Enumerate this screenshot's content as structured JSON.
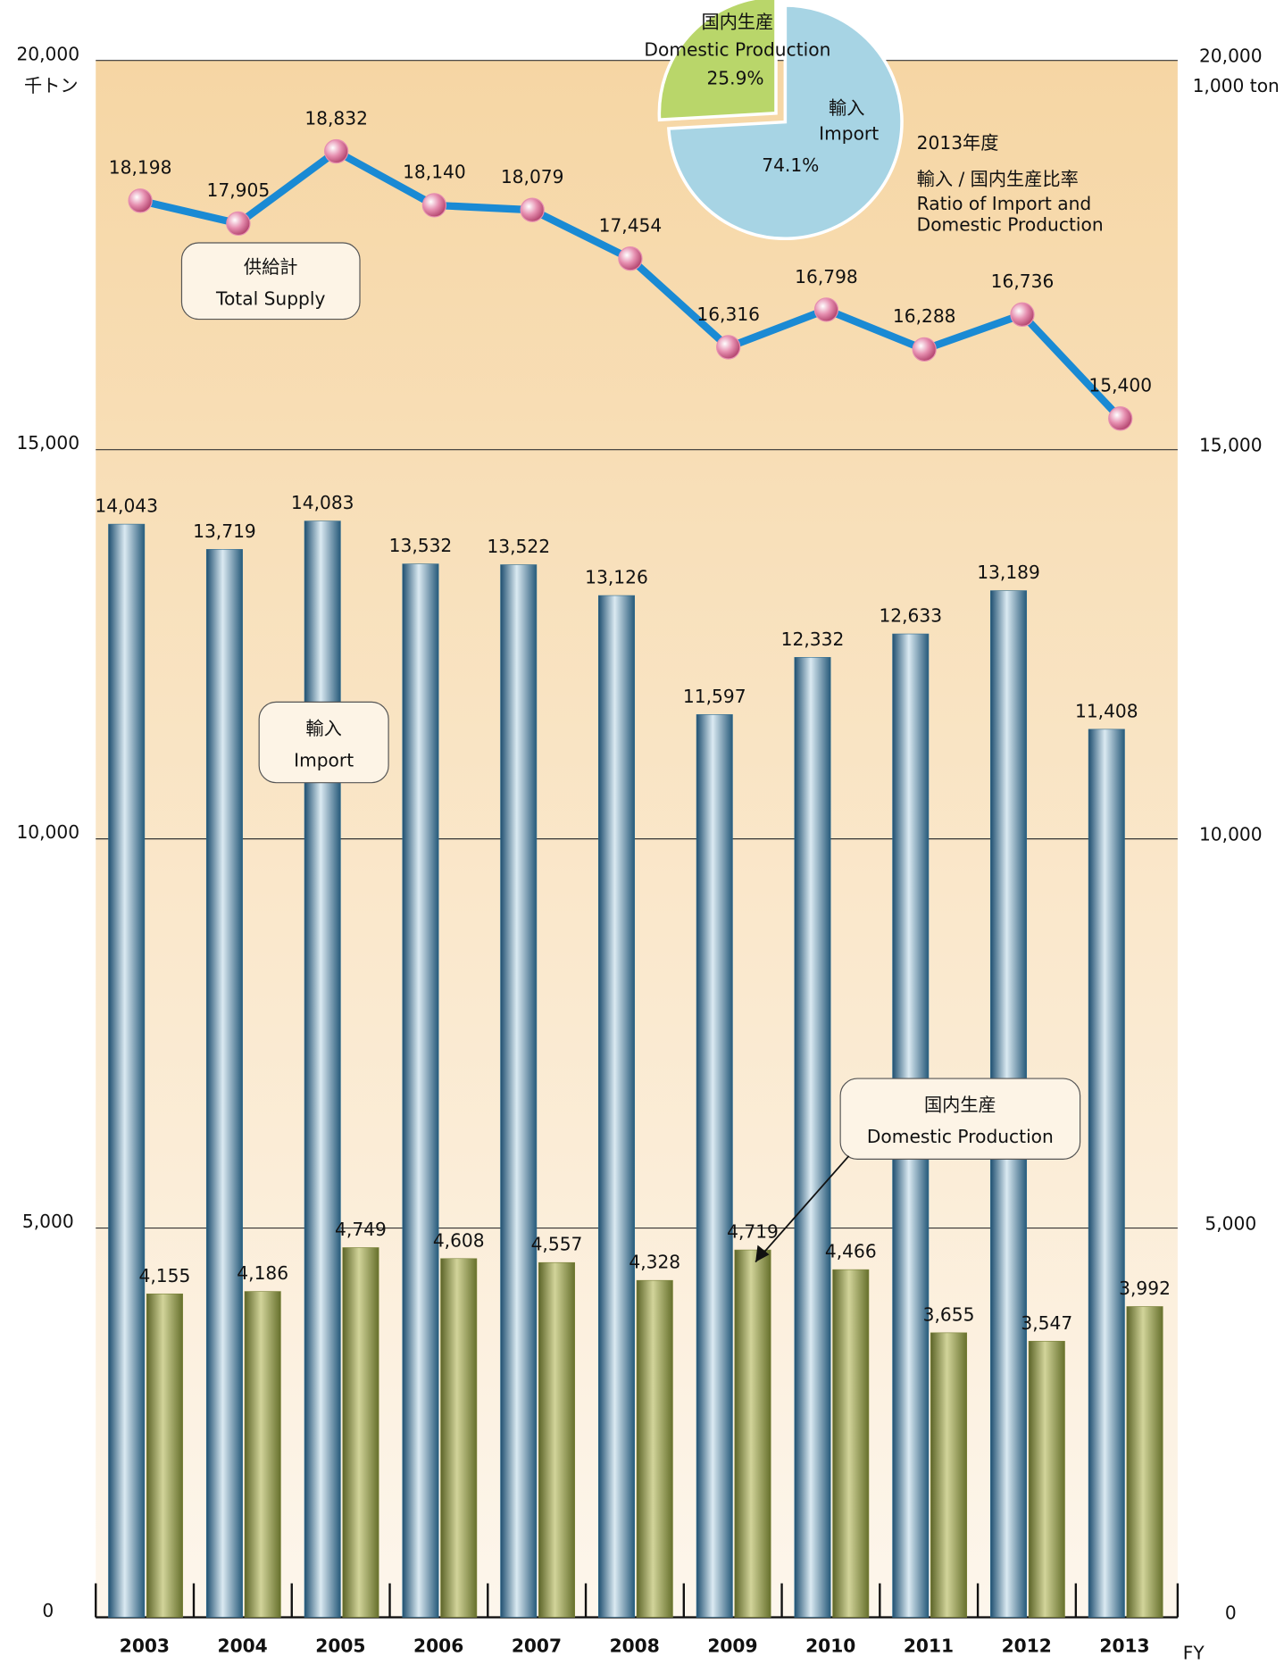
{
  "chart_data": [
    {
      "type": "bar",
      "categories": [
        "2003",
        "2004",
        "2005",
        "2006",
        "2007",
        "2008",
        "2009",
        "2010",
        "2011",
        "2012",
        "2013"
      ],
      "x_label": "FY",
      "y_label": "千トン",
      "y2_label": "1,000 ton",
      "series": [
        {
          "name": "輸入",
          "name_en": "Import",
          "color": "#2f6c90",
          "values": [
            14043,
            13719,
            14083,
            13532,
            13522,
            13126,
            11597,
            12332,
            12633,
            13189,
            11408
          ],
          "value_labels": [
            "14,043",
            "13,719",
            "14,083",
            "13,532",
            "13,522",
            "13,126",
            "11,597",
            "12,332",
            "12,633",
            "13,189",
            "11,408"
          ]
        },
        {
          "name": "国内生産",
          "name_en": "Domestic Production",
          "color": "#7a8238",
          "values": [
            4155,
            4186,
            4749,
            4608,
            4557,
            4328,
            4719,
            4466,
            3655,
            3547,
            3992
          ],
          "value_labels": [
            "4,155",
            "4,186",
            "4,749",
            "4,608",
            "4,557",
            "4,328",
            "4,719",
            "4,466",
            "3,655",
            "3,547",
            "3,992"
          ]
        },
        {
          "name": "供給計",
          "name_en": "Total Supply",
          "type": "line",
          "color": "#1a8ad4",
          "marker_color": "#e68fb0",
          "values": [
            18198,
            17905,
            18832,
            18140,
            18079,
            17454,
            16316,
            16798,
            16288,
            16736,
            15400
          ],
          "value_labels": [
            "18,198",
            "17,905",
            "18,832",
            "18,140",
            "18,079",
            "17,454",
            "16,316",
            "16,798",
            "16,288",
            "16,736",
            "15,400"
          ]
        }
      ],
      "ylim": [
        0,
        20000
      ],
      "yticks": [
        0,
        {
          "value": 5000,
          "label": "5,000"
        },
        {
          "value": 10000,
          "label": "10,000"
        },
        {
          "value": 15000,
          "label": "15,000"
        },
        {
          "value": 20000,
          "label": "20,000"
        }
      ],
      "y2lim": [
        0,
        20000
      ],
      "y2ticks": [
        0,
        {
          "value": 5000,
          "label": "5,000"
        },
        {
          "value": 10000,
          "label": "10,000"
        },
        {
          "value": 15000,
          "label": "15,000"
        },
        {
          "value": 20000,
          "label": "20,000"
        }
      ],
      "grid": true
    },
    {
      "type": "pie",
      "title": "2013年度",
      "subtitle": "輸入 / 国内生産比率",
      "subtitle_en": [
        "Ratio of Import and",
        "Domestic Production"
      ],
      "categories": [
        "輸入",
        "国内生産"
      ],
      "categories_en": [
        "Import",
        "Domestic Production"
      ],
      "values": [
        74.1,
        25.9
      ],
      "value_labels": [
        "74.1%",
        "25.9%"
      ],
      "colors": [
        "#a7d4e4",
        "#b9d66a"
      ]
    }
  ]
}
